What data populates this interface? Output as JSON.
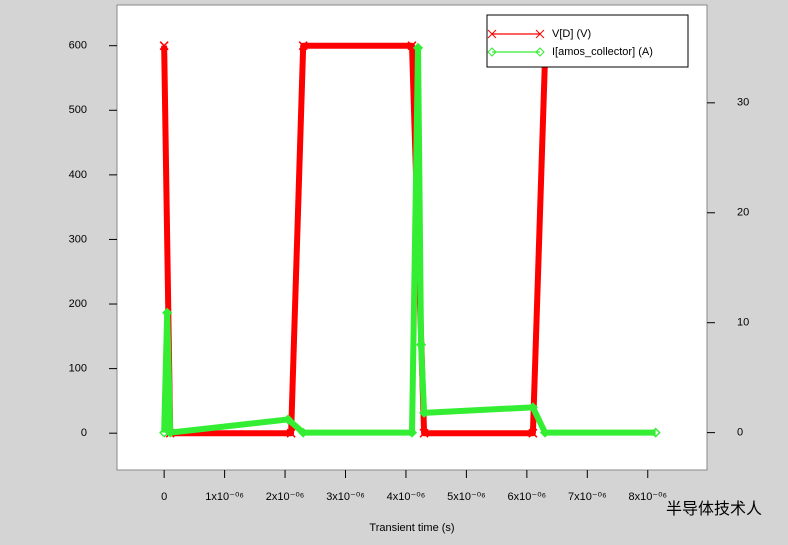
{
  "chart_data": {
    "type": "line",
    "x_label": "Transient time (s)",
    "watermark": "半导体技术人",
    "xlim": [
      -7.8e-07,
      8.98e-06
    ],
    "xticks": [
      0,
      {
        "value": 1e-06,
        "label": "1x10⁻⁰⁶"
      },
      {
        "value": 2e-06,
        "label": "2x10⁻⁰⁶"
      },
      {
        "value": 3e-06,
        "label": "3x10⁻⁰⁶"
      },
      {
        "value": 4e-06,
        "label": "4x10⁻⁰⁶"
      },
      {
        "value": 5e-06,
        "label": "5x10⁻⁰⁶"
      },
      {
        "value": 6e-06,
        "label": "6x10⁻⁰⁶"
      },
      {
        "value": 7e-06,
        "label": "7x10⁻⁰⁶"
      },
      {
        "value": 8e-06,
        "label": "8x10⁻⁰⁶"
      }
    ],
    "ylim": [
      -57,
      663
    ],
    "yticks": [
      0,
      100,
      200,
      300,
      400,
      500,
      600
    ],
    "y2lim": [
      -3.4,
      38.9
    ],
    "y2ticks": [
      0,
      10,
      20,
      30
    ],
    "series": [
      {
        "name": "V[D] (V)",
        "color": "#ff0000",
        "marker": "x",
        "x": [
          0,
          1e-07,
          2.1e-06,
          2.3e-06,
          4.1e-06,
          4.3e-06,
          6.1e-06,
          6.3e-06
        ],
        "values": [
          600,
          0,
          0,
          600,
          600,
          0,
          0,
          580
        ]
      },
      {
        "name": "I[amos_collector] (A)",
        "color": "#33ee33",
        "marker": "diamond",
        "axis": "y2",
        "x": [
          0,
          5e-08,
          1e-07,
          2.05e-06,
          2.3e-06,
          4.1e-06,
          4.2e-06,
          4.25e-06,
          4.3e-06,
          6.1e-06,
          6.3e-06,
          8.13e-06
        ],
        "values": [
          0,
          10.9,
          0,
          1.2,
          0,
          0,
          35,
          8,
          1.8,
          2.3,
          0,
          0
        ]
      }
    ]
  }
}
